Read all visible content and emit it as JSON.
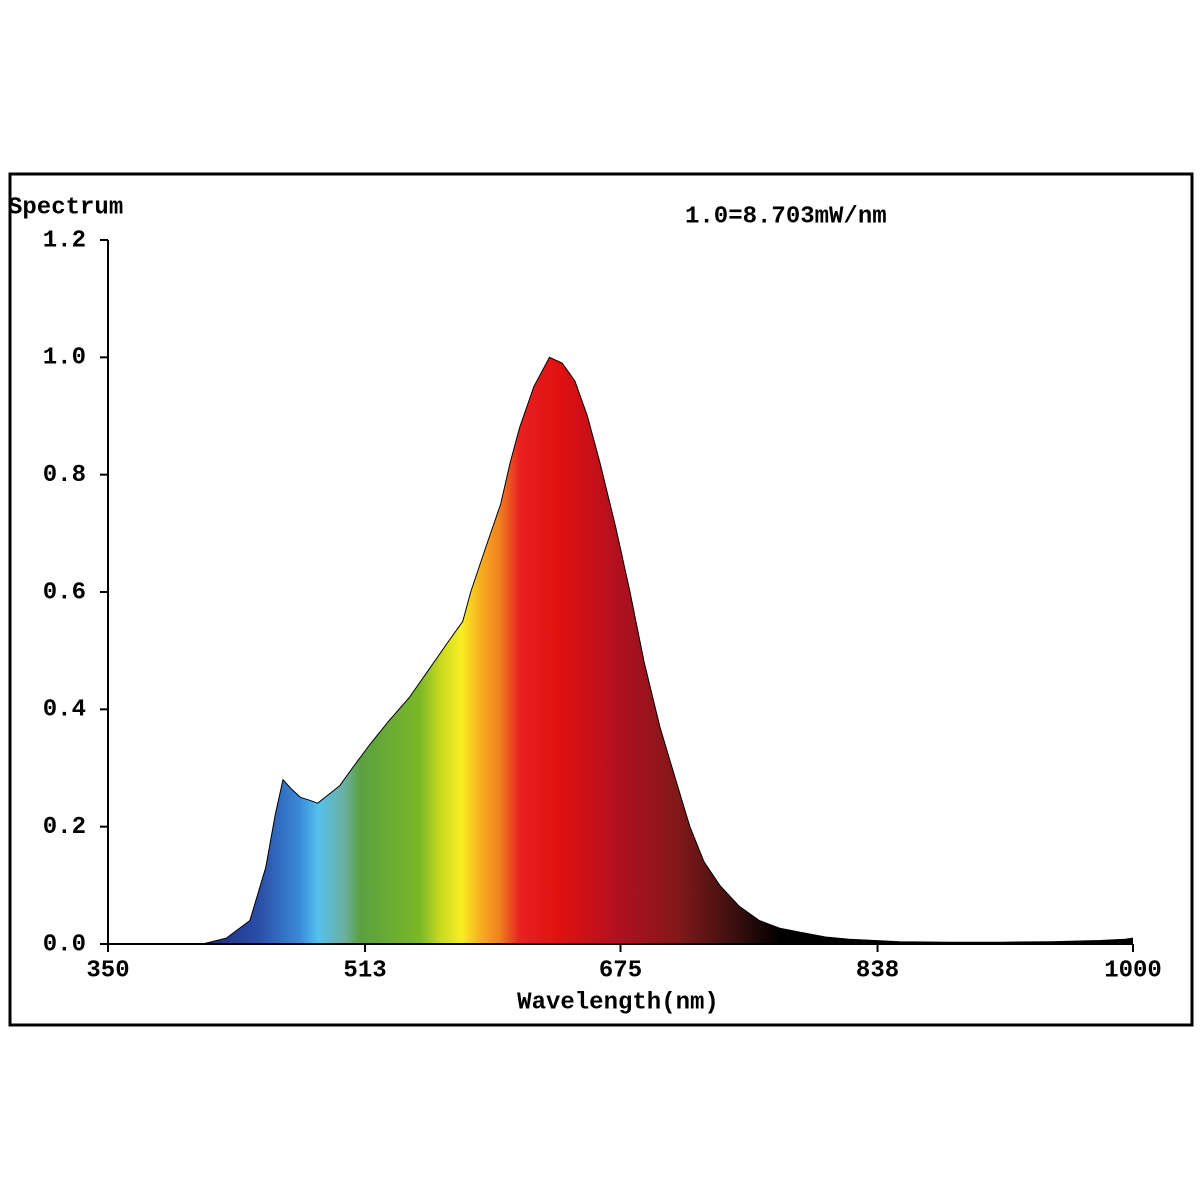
{
  "chart_data": {
    "type": "area",
    "y_label": "Spectrum",
    "annotation": "1.0=8.703mW/nm",
    "x_label": "Wavelength(nm)",
    "x": [
      350,
      380,
      410,
      425,
      440,
      450,
      456,
      461,
      466,
      472,
      478,
      483,
      490,
      497,
      505,
      516,
      528,
      541,
      554,
      567,
      575,
      580,
      590,
      599,
      605,
      611,
      620,
      630,
      638,
      646,
      654,
      662,
      672,
      681,
      690,
      700,
      710,
      719,
      728,
      738,
      750,
      763,
      776,
      789,
      805,
      820,
      852,
      884,
      916,
      948,
      979,
      995,
      1000
    ],
    "values": [
      0,
      0,
      0,
      0.01,
      0.04,
      0.13,
      0.22,
      0.28,
      0.265,
      0.25,
      0.245,
      0.24,
      0.255,
      0.27,
      0.3,
      0.34,
      0.38,
      0.42,
      0.47,
      0.52,
      0.55,
      0.6,
      0.68,
      0.75,
      0.82,
      0.88,
      0.95,
      1.0,
      0.99,
      0.96,
      0.9,
      0.82,
      0.71,
      0.6,
      0.48,
      0.37,
      0.28,
      0.2,
      0.14,
      0.1,
      0.065,
      0.04,
      0.027,
      0.02,
      0.012,
      0.008,
      0.004,
      0.003,
      0.003,
      0.004,
      0.006,
      0.008,
      0.01
    ],
    "xlim": [
      350,
      1000
    ],
    "xticks": [
      350,
      513,
      675,
      838,
      1000
    ],
    "ylim": [
      0,
      1.2
    ],
    "yticks": [
      {
        "value": 0,
        "label": "0.0"
      },
      {
        "value": 0.2,
        "label": "0.2"
      },
      {
        "value": 0.4,
        "label": "0.4"
      },
      {
        "value": 0.6,
        "label": "0.6"
      },
      {
        "value": 0.8,
        "label": "0.8"
      },
      {
        "value": 1.0,
        "label": "1.0"
      },
      {
        "value": 1.2,
        "label": "1.2"
      }
    ]
  }
}
